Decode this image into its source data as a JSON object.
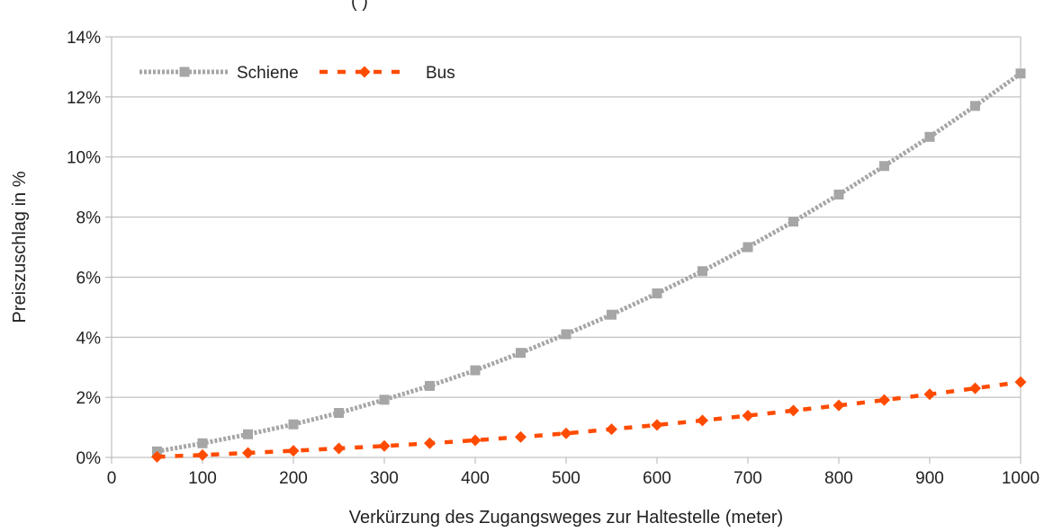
{
  "chart_data": {
    "type": "line",
    "title": "",
    "title_fragment": "(                                )",
    "xlabel": "Verkürzung des Zugangsweges zur Haltestelle (meter)",
    "ylabel": "Preiszuschlag in %",
    "xlim": [
      0,
      1000
    ],
    "ylim": [
      0,
      14
    ],
    "x_ticks": [
      "0",
      "100",
      "200",
      "300",
      "400",
      "500",
      "600",
      "700",
      "800",
      "900",
      "1000"
    ],
    "y_ticks": [
      "0%",
      "2%",
      "4%",
      "6%",
      "8%",
      "10%",
      "12%",
      "14%"
    ],
    "grid": "horizontal",
    "legend_position": "top-left",
    "x": [
      50,
      100,
      150,
      200,
      250,
      300,
      350,
      400,
      450,
      500,
      550,
      600,
      650,
      700,
      750,
      800,
      850,
      900,
      950,
      1000
    ],
    "series": [
      {
        "name": "Schiene",
        "color": "#a6a6a6",
        "marker": "square",
        "line": "dotted",
        "values": [
          0.2,
          0.47,
          0.77,
          1.1,
          1.48,
          1.92,
          2.38,
          2.9,
          3.48,
          4.1,
          4.75,
          5.46,
          6.2,
          7.0,
          7.85,
          8.75,
          9.7,
          10.67,
          11.7,
          12.78
        ]
      },
      {
        "name": "Bus",
        "color": "#ff4b00",
        "marker": "diamond",
        "line": "dashed",
        "values": [
          0.02,
          0.08,
          0.15,
          0.22,
          0.3,
          0.38,
          0.47,
          0.57,
          0.68,
          0.8,
          0.94,
          1.08,
          1.23,
          1.39,
          1.56,
          1.73,
          1.91,
          2.1,
          2.3,
          2.51
        ]
      }
    ]
  }
}
